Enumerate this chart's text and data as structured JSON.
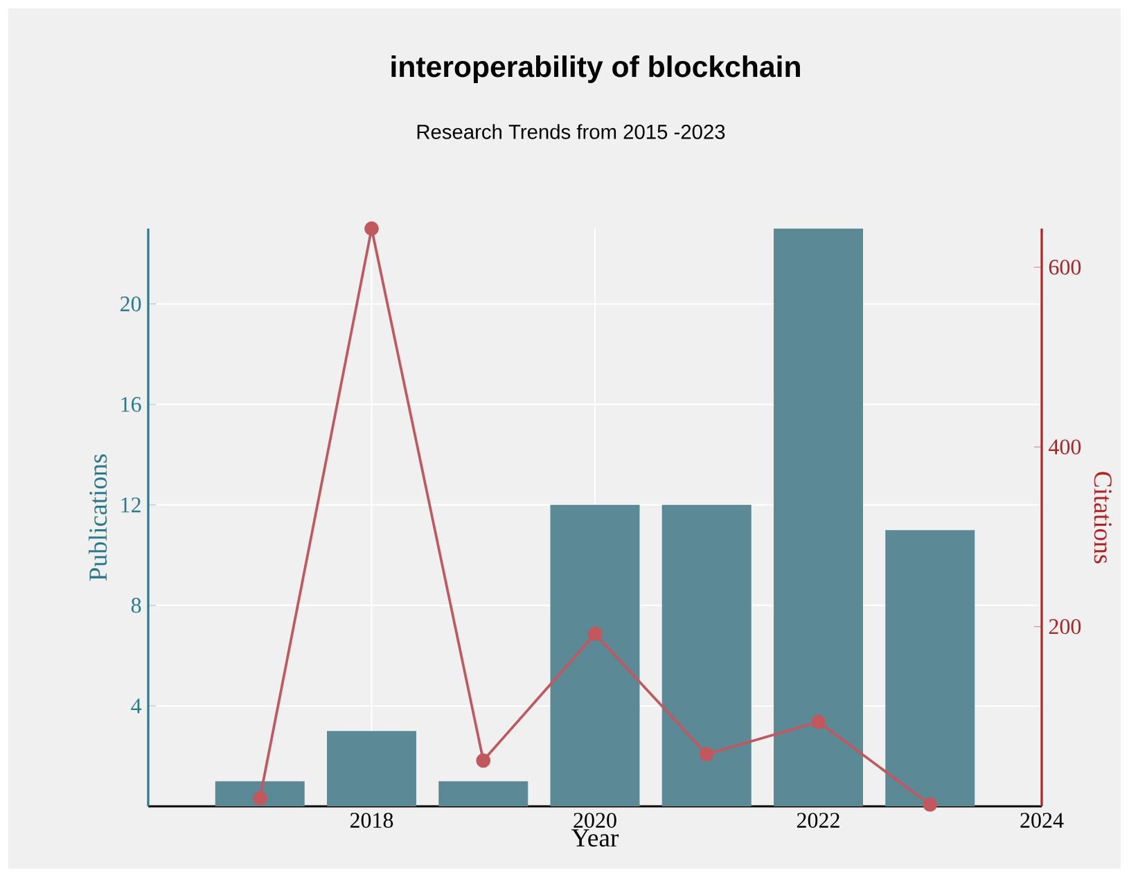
{
  "chart_data": {
    "type": "bar",
    "title": "interoperability of blockchain",
    "subtitle": "Research Trends from 2015 -2023",
    "xlabel": "Year",
    "ylabel": "Publications",
    "y2label": "Citations",
    "x": [
      2017,
      2018,
      2019,
      2020,
      2021,
      2022,
      2023
    ],
    "series": [
      {
        "color": "#5b8a96",
        "values": [
          1,
          3,
          1,
          12,
          12,
          23,
          11
        ]
      },
      {
        "type": "line",
        "axis": "y2",
        "color": "#c0585e",
        "marker": "circle",
        "values": [
          9,
          643,
          51,
          192,
          58,
          94,
          2
        ]
      }
    ],
    "xlim": [
      2016,
      2024
    ],
    "xticks": [
      2018,
      2020,
      2022,
      2024
    ],
    "ylim": [
      0,
      23
    ],
    "yticks": [
      4,
      8,
      12,
      16,
      20
    ],
    "y2lim": [
      0,
      643
    ],
    "y2ticks": [
      200,
      400,
      600
    ],
    "grid": true
  }
}
